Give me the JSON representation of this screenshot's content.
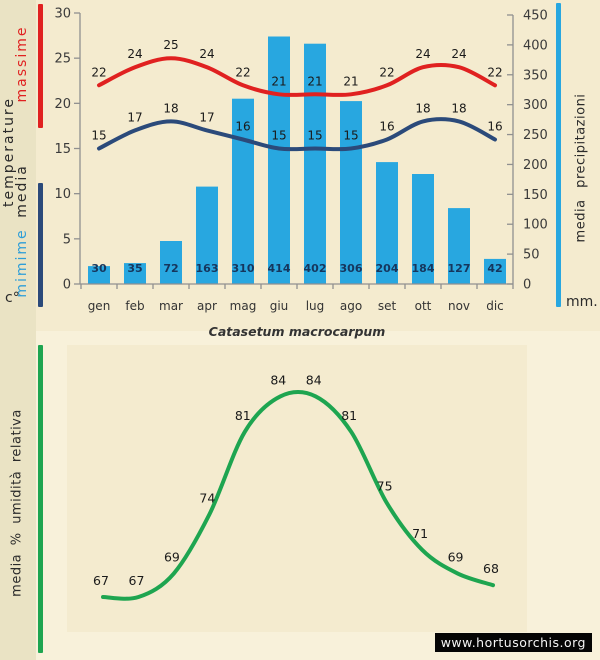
{
  "title": "Catasetum macrocarpum",
  "watermark": "www.hortusorchis.org",
  "colors": {
    "background": "#f8f1da",
    "parchment": "#f4ebcf",
    "sidebar_strip": "#eae3c4",
    "max_temp": "#e02120",
    "min_temp": "#2b4a7a",
    "min_temp_legend_text": "#2e9ed8",
    "precipitation": "#28a7e0",
    "humidity": "#1ea550",
    "axis": "#909090",
    "tick_text": "#3a3a3a",
    "bar_value_text": "#16365d",
    "point_value_text": "#1a1a1a",
    "watermark_bg": "#050505",
    "watermark_text": "#f5f5f5"
  },
  "sidebar_labels": {
    "massime": "massime",
    "temperature": "temperature",
    "media": "media",
    "minime": "mimime",
    "celsius": "c°",
    "right_axis": "media precipitazioni",
    "right_unit": "mm.",
    "humidity": "media % umidità relativa"
  },
  "chart_data": [
    {
      "type": "bar",
      "title": "Catasetum macrocarpum",
      "categories": [
        "gen",
        "feb",
        "mar",
        "apr",
        "mag",
        "giu",
        "lug",
        "ago",
        "set",
        "ott",
        "nov",
        "dic"
      ],
      "series": [
        {
          "name": "massime",
          "kind": "line",
          "color": "#e02120",
          "values": [
            22,
            24,
            25,
            24,
            22,
            21,
            21,
            21,
            22,
            24,
            24,
            22
          ]
        },
        {
          "name": "mimime",
          "kind": "line",
          "color": "#2b4a7a",
          "values": [
            15,
            17,
            18,
            17,
            16,
            15,
            15,
            15,
            16,
            18,
            18,
            16
          ]
        },
        {
          "name": "media precipitazioni",
          "kind": "bar",
          "color": "#28a7e0",
          "values": [
            30,
            35,
            72,
            163,
            310,
            414,
            402,
            306,
            204,
            184,
            127,
            42
          ]
        }
      ],
      "axes": {
        "left": {
          "label": "c° media temperature",
          "min": 0,
          "max": 30,
          "step": 5
        },
        "right": {
          "label": "media precipitazioni",
          "unit": "mm.",
          "min": 0,
          "max": 450,
          "step": 50
        }
      },
      "grid": false,
      "legend_position": "side-rails"
    },
    {
      "type": "line",
      "categories": [
        "gen",
        "feb",
        "mar",
        "apr",
        "mag",
        "giu",
        "lug",
        "ago",
        "set",
        "ott",
        "nov",
        "dic"
      ],
      "series": [
        {
          "name": "media % umidità relativa",
          "kind": "line",
          "color": "#1ea550",
          "values": [
            67,
            67,
            69,
            74,
            81,
            84,
            84,
            81,
            75,
            71,
            69,
            68
          ]
        }
      ],
      "axes": {
        "left": {
          "label": "media % umidità relativa"
        }
      },
      "grid": false,
      "legend_position": "side-rail"
    }
  ]
}
